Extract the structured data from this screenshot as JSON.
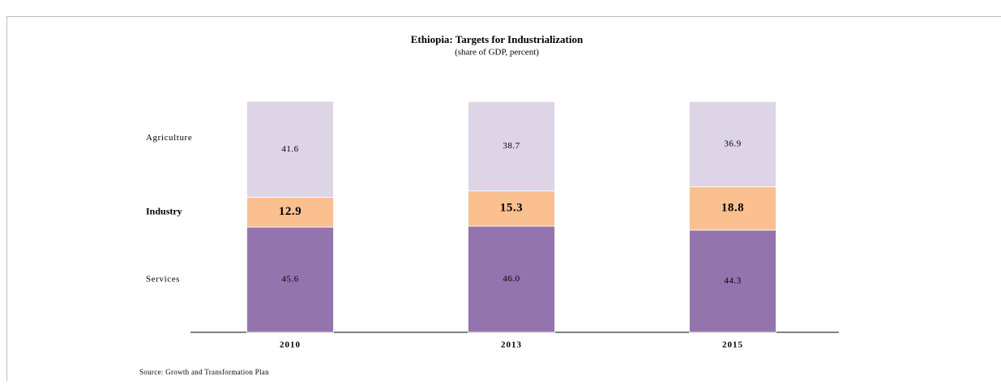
{
  "chart_data": {
    "type": "stacked_bar",
    "title": "Ethiopia: Targets for Industrialization",
    "subtitle": "(share of GDP, percent)",
    "source": "Source: Growth and Transformation Plan",
    "categories": [
      "2010",
      "2013",
      "2015"
    ],
    "series": [
      {
        "name": "Services",
        "color": "#9474ad",
        "values": [
          45.6,
          46.0,
          44.3
        ],
        "value_labels": [
          "45.6",
          "46.0",
          "44.3"
        ]
      },
      {
        "name": "Industry",
        "color": "#fac090",
        "values": [
          12.9,
          15.3,
          18.8
        ]
      },
      {
        "name": "Agriculture",
        "color": "#ddd5e6",
        "values": [
          41.6,
          38.7,
          36.9
        ]
      }
    ]
  }
}
